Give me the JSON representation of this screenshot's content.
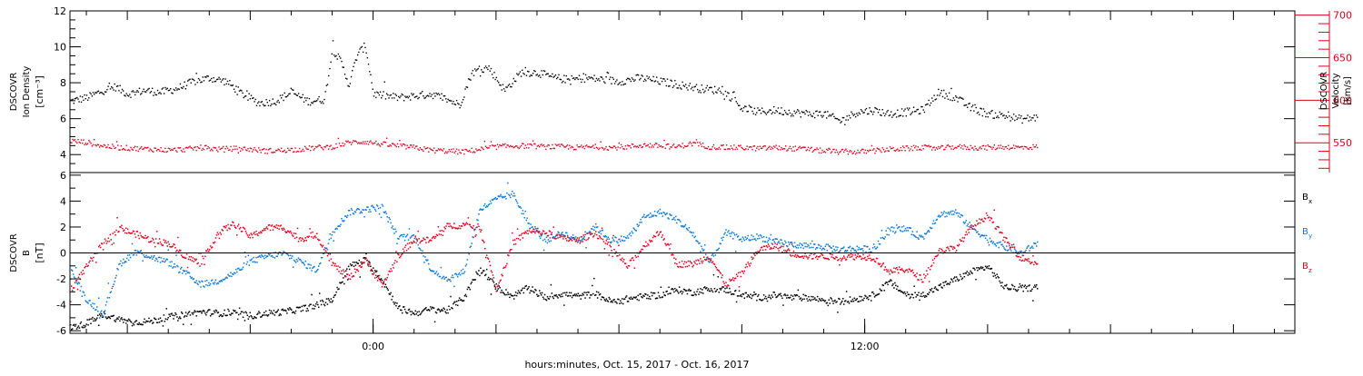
{
  "chart_data": [
    {
      "type": "scatter",
      "panel": "top",
      "ylabel": [
        "DSCOVR",
        "Ion Density",
        "[cm⁻³]"
      ],
      "ylim": [
        3,
        12
      ],
      "yticks": [
        4,
        6,
        8,
        10,
        12
      ],
      "y2label": [
        "DSCOVR",
        "Velocity",
        "[km/s]"
      ],
      "y2lim": [
        515,
        705
      ],
      "y2ticks": [
        550,
        600,
        650,
        700
      ],
      "y2color": "#e0001c",
      "xlim_hours": [
        -7.4,
        22.5
      ],
      "series": [
        {
          "axis": "left",
          "color": "#000000",
          "x": [
            -7.4,
            -7.0,
            -6.6,
            -6.3,
            -6.0,
            -5.6,
            -5.2,
            -4.8,
            -4.4,
            -4.0,
            -3.6,
            -3.2,
            -2.8,
            -2.4,
            -2.0,
            -1.6,
            -1.2,
            -1.0,
            -0.8,
            -0.6,
            -0.4,
            -0.2,
            0.0,
            0.3,
            0.6,
            1.0,
            1.4,
            1.8,
            2.1,
            2.4,
            2.8,
            3.2,
            3.6,
            4.0,
            4.4,
            4.8,
            5.2,
            5.6,
            6.0,
            6.5,
            7.0,
            7.5,
            8.0,
            8.5,
            8.8,
            9.0,
            9.4,
            9.8,
            10.2,
            10.6,
            11.0,
            11.4,
            11.8,
            12.2,
            12.6,
            13.0,
            13.4,
            13.8,
            14.2,
            14.6,
            15.0,
            15.4,
            15.8,
            16.2
          ],
          "y": [
            7.0,
            7.2,
            7.6,
            7.8,
            7.4,
            7.6,
            7.5,
            7.7,
            8.1,
            8.3,
            8.1,
            7.4,
            6.9,
            7.0,
            7.5,
            7.0,
            7.1,
            9.9,
            9.2,
            7.9,
            9.6,
            10.1,
            7.4,
            7.3,
            7.2,
            7.3,
            7.4,
            7.1,
            6.8,
            8.6,
            8.9,
            7.6,
            8.6,
            8.6,
            8.3,
            8.2,
            8.3,
            8.2,
            8.1,
            8.3,
            8.1,
            7.9,
            7.7,
            7.6,
            7.1,
            6.6,
            6.4,
            6.5,
            6.4,
            6.3,
            6.3,
            5.9,
            6.4,
            6.5,
            6.3,
            6.4,
            6.5,
            7.5,
            7.2,
            6.6,
            6.3,
            6.2,
            6.0,
            6.1
          ]
        },
        {
          "axis": "right",
          "color": "#e0001c",
          "x": [
            -7.4,
            -7.0,
            -6.6,
            -6.2,
            -5.8,
            -5.4,
            -5.0,
            -4.6,
            -4.2,
            -3.8,
            -3.4,
            -3.0,
            -2.6,
            -2.2,
            -1.8,
            -1.4,
            -1.0,
            -0.6,
            -0.2,
            0.2,
            0.6,
            1.0,
            1.4,
            1.8,
            2.2,
            2.6,
            3.0,
            3.4,
            3.8,
            4.2,
            4.6,
            5.0,
            5.4,
            5.8,
            6.2,
            6.6,
            7.0,
            7.4,
            7.8,
            8.2,
            8.6,
            9.0,
            9.4,
            9.8,
            10.2,
            10.6,
            11.0,
            11.4,
            11.8,
            12.2,
            12.6,
            13.0,
            13.4,
            13.8,
            14.2,
            14.6,
            15.0,
            15.4,
            15.8,
            16.2
          ],
          "y": [
            553,
            551,
            547,
            545,
            544,
            543,
            542,
            543,
            545,
            543,
            544,
            543,
            541,
            542,
            543,
            545,
            546,
            551,
            552,
            549,
            547,
            545,
            542,
            541,
            540,
            543,
            546,
            547,
            547,
            546,
            546,
            545,
            546,
            545,
            546,
            548,
            547,
            546,
            550,
            546,
            545,
            545,
            544,
            545,
            544,
            543,
            541,
            540,
            540,
            541,
            543,
            544,
            545,
            544,
            546,
            545,
            545,
            546,
            545,
            546
          ]
        }
      ]
    },
    {
      "type": "scatter",
      "panel": "bottom",
      "ylabel": [
        "DSCOVR",
        "B",
        "[nT]"
      ],
      "ylim": [
        -6.2,
        6.2
      ],
      "yticks": [
        -6,
        -4,
        -2,
        0,
        2,
        4,
        6
      ],
      "zero_line": true,
      "xlabel": "hours:minutes, Oct. 15, 2017 - Oct. 16, 2017",
      "xtick_labels": [
        {
          "hour": 0,
          "label": "0:00"
        },
        {
          "hour": 12,
          "label": "12:00"
        }
      ],
      "xlim_hours": [
        -7.4,
        22.5
      ],
      "legend_position": "right",
      "series": [
        {
          "name": "Bx",
          "label_main": "B",
          "label_sub": "x",
          "color": "#000000",
          "x": [
            -7.4,
            -7.0,
            -6.6,
            -6.2,
            -5.8,
            -5.4,
            -5.0,
            -4.6,
            -4.2,
            -3.8,
            -3.4,
            -3.0,
            -2.6,
            -2.2,
            -1.8,
            -1.4,
            -1.0,
            -0.6,
            -0.2,
            0.2,
            0.6,
            1.0,
            1.4,
            1.8,
            2.2,
            2.6,
            3.0,
            3.4,
            3.8,
            4.2,
            4.6,
            5.0,
            5.4,
            5.8,
            6.2,
            6.6,
            7.0,
            7.4,
            7.8,
            8.2,
            8.6,
            9.0,
            9.4,
            9.8,
            10.2,
            10.6,
            11.0,
            11.4,
            11.8,
            12.2,
            12.6,
            13.0,
            13.4,
            13.8,
            14.2,
            14.6,
            15.0,
            15.4,
            15.8,
            16.2
          ],
          "y": [
            -5.7,
            -5.4,
            -4.7,
            -5.1,
            -5.3,
            -5.2,
            -4.9,
            -4.7,
            -4.5,
            -4.6,
            -4.6,
            -4.8,
            -4.6,
            -4.5,
            -4.3,
            -4.0,
            -3.5,
            -1.0,
            -0.5,
            -2.0,
            -4.2,
            -4.6,
            -4.3,
            -4.4,
            -3.4,
            -1.2,
            -2.6,
            -3.3,
            -2.6,
            -3.4,
            -3.1,
            -3.3,
            -3.1,
            -3.7,
            -3.5,
            -3.3,
            -3.2,
            -2.8,
            -3.0,
            -2.7,
            -2.8,
            -3.2,
            -3.4,
            -3.2,
            -3.4,
            -3.4,
            -3.6,
            -3.7,
            -3.5,
            -3.2,
            -2.2,
            -3.2,
            -3.2,
            -2.6,
            -2.0,
            -1.4,
            -1.0,
            -2.6,
            -2.7,
            -2.6
          ]
        },
        {
          "name": "By",
          "label_main": "B",
          "label_sub": "y",
          "color": "#0b78d8",
          "x": [
            -7.4,
            -7.0,
            -6.6,
            -6.2,
            -5.8,
            -5.4,
            -5.0,
            -4.6,
            -4.2,
            -3.8,
            -3.4,
            -3.0,
            -2.6,
            -2.2,
            -1.8,
            -1.4,
            -1.0,
            -0.6,
            -0.2,
            0.2,
            0.6,
            1.0,
            1.4,
            1.8,
            2.2,
            2.6,
            3.0,
            3.4,
            3.8,
            4.2,
            4.6,
            5.0,
            5.4,
            5.8,
            6.2,
            6.6,
            7.0,
            7.4,
            7.8,
            8.2,
            8.6,
            9.0,
            9.4,
            9.8,
            10.2,
            10.6,
            11.0,
            11.4,
            11.8,
            12.2,
            12.6,
            13.0,
            13.4,
            13.8,
            14.2,
            14.6,
            15.0,
            15.4,
            15.8,
            16.2
          ],
          "y": [
            -1.2,
            -3.6,
            -4.6,
            -0.8,
            0.2,
            -0.3,
            -0.7,
            -1.5,
            -2.4,
            -2.1,
            -1.5,
            -0.6,
            -0.2,
            0.0,
            -0.6,
            -1.3,
            1.7,
            3.2,
            3.4,
            3.6,
            1.2,
            1.3,
            -1.2,
            -2.0,
            -1.4,
            3.4,
            4.2,
            4.6,
            2.2,
            1.0,
            1.6,
            1.0,
            2.1,
            1.0,
            1.2,
            2.8,
            3.2,
            2.6,
            1.5,
            -0.7,
            1.6,
            1.1,
            1.3,
            0.9,
            0.7,
            0.6,
            0.5,
            0.3,
            0.4,
            0.3,
            1.8,
            1.9,
            1.2,
            3.0,
            3.2,
            2.0,
            1.1,
            0.5,
            0.0,
            0.8
          ]
        },
        {
          "name": "Bz",
          "label_main": "B",
          "label_sub": "z",
          "color": "#e0001c",
          "x": [
            -7.4,
            -7.0,
            -6.6,
            -6.2,
            -5.8,
            -5.4,
            -5.0,
            -4.6,
            -4.2,
            -3.8,
            -3.4,
            -3.0,
            -2.6,
            -2.2,
            -1.8,
            -1.4,
            -1.0,
            -0.6,
            -0.2,
            0.2,
            0.6,
            1.0,
            1.4,
            1.8,
            2.2,
            2.6,
            3.0,
            3.4,
            3.8,
            4.2,
            4.6,
            5.0,
            5.4,
            5.8,
            6.2,
            6.6,
            7.0,
            7.4,
            7.8,
            8.2,
            8.6,
            9.0,
            9.4,
            9.8,
            10.2,
            10.6,
            11.0,
            11.4,
            11.8,
            12.2,
            12.6,
            13.0,
            13.4,
            13.8,
            14.2,
            14.6,
            15.0,
            15.4,
            15.8,
            16.2
          ],
          "y": [
            -2.8,
            -1.0,
            0.8,
            1.9,
            1.5,
            1.0,
            0.8,
            -0.2,
            -0.8,
            1.6,
            2.3,
            1.3,
            2.0,
            2.0,
            1.1,
            1.5,
            -0.8,
            -1.9,
            -0.5,
            -2.5,
            -0.2,
            1.1,
            1.0,
            2.1,
            2.2,
            2.0,
            -2.8,
            0.8,
            1.8,
            1.6,
            1.2,
            1.0,
            1.6,
            0.4,
            -1.0,
            0.6,
            1.7,
            -0.8,
            -0.8,
            -0.2,
            -2.4,
            -1.5,
            0.3,
            0.6,
            0.0,
            -0.2,
            -0.2,
            -0.3,
            -0.2,
            -0.3,
            -1.4,
            -1.2,
            -2.0,
            0.2,
            0.4,
            2.0,
            3.0,
            1.1,
            -0.3,
            -0.8
          ]
        }
      ]
    }
  ]
}
